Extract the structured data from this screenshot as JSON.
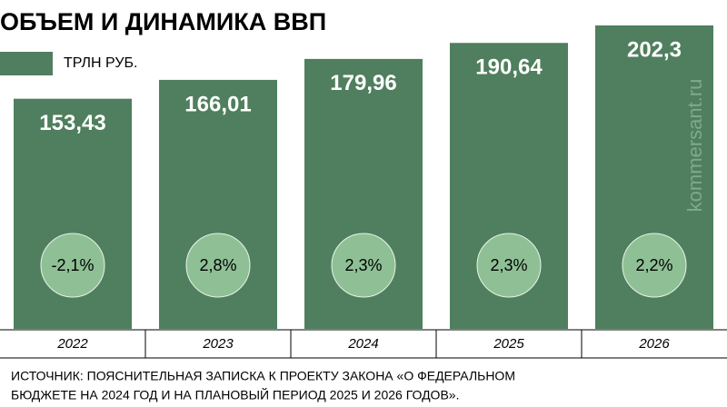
{
  "chart_data": {
    "type": "bar",
    "title": "ОБЪЕМ И ДИНАМИКА ВВП",
    "categories": [
      "2022",
      "2023",
      "2024",
      "2025",
      "2026"
    ],
    "series": [
      {
        "name": "ТРЛН РУБ.",
        "color": "#4f7f5e",
        "values": [
          153.43,
          166.01,
          179.96,
          190.64,
          202.3
        ],
        "value_labels": [
          "153,43",
          "166,01",
          "179,96",
          "190,64",
          "202,3"
        ]
      }
    ],
    "growth": {
      "color": "#8fc095",
      "values": [
        -2.1,
        2.8,
        2.3,
        2.3,
        2.2
      ],
      "value_labels": [
        "-2,1%",
        "2,8%",
        "2,3%",
        "2,3%",
        "2,2%"
      ]
    },
    "watermark": "kommersant.ru",
    "source": [
      "ИСТОЧНИК: ПОЯСНИТЕЛЬНАЯ ЗАПИСКА К ПРОЕКТУ ЗАКОНА «О ФЕДЕРАЛЬНОМ",
      "БЮДЖЕТЕ НА 2024 ГОД И НА ПЛАНОВЫЙ ПЕРИОД 2025 И 2026 ГОДОВ»."
    ]
  }
}
